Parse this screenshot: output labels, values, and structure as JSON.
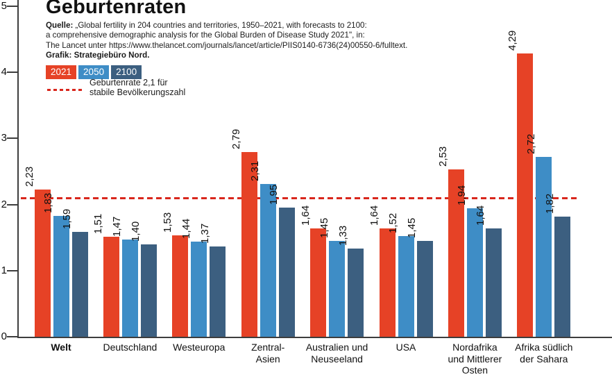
{
  "title": "Geburtenraten",
  "source": {
    "prefix": "Quelle:",
    "line1_rest": " „Global fertility in 204 countries and territories, 1950–2021, with forecasts to 2100:",
    "line2": "a comprehensive demographic analysis for the Global Burden of Disease Study 2021\", in:",
    "line3": "The Lancet unter https://www.thelancet.com/journals/lancet/article/PIIS0140-6736(24)00550-6/fulltext.",
    "credit": "Grafik: Strategiebüro Nord."
  },
  "legend": {
    "reference_label_line1": "Geburtenrate 2,1 für",
    "reference_label_line2": "stabile Bevölkerungszahl"
  },
  "chart_data": {
    "type": "bar",
    "title": "Geburtenraten",
    "ylim": [
      0,
      5
    ],
    "y_ticks": [
      0,
      1,
      2,
      3,
      4,
      5
    ],
    "grid": false,
    "legend_position": "top-left",
    "axis_color": "#3d3d3d",
    "reference_line": {
      "value": 2.1,
      "label": "Geburtenrate 2,1 für stabile Bevölkerungszahl",
      "style": "dashed",
      "color": "#d9261c"
    },
    "categories": [
      {
        "label": "Welt",
        "lines": [
          "Welt"
        ],
        "bold": true
      },
      {
        "label": "Deutschland",
        "lines": [
          "Deutschland"
        ],
        "bold": false
      },
      {
        "label": "Westeuropa",
        "lines": [
          "Westeuropa"
        ],
        "bold": false
      },
      {
        "label": "Zentral-Asien",
        "lines": [
          "Zentral-",
          "Asien"
        ],
        "bold": false
      },
      {
        "label": "Australien und Neuseeland",
        "lines": [
          "Australien und",
          "Neuseeland"
        ],
        "bold": false
      },
      {
        "label": "USA",
        "lines": [
          "USA"
        ],
        "bold": false
      },
      {
        "label": "Nordafrika und Mittlerer Osten",
        "lines": [
          "Nordafrika",
          "und Mittlerer",
          "Osten"
        ],
        "bold": false
      },
      {
        "label": "Afrika südlich der Sahara",
        "lines": [
          "Afrika südlich",
          "der Sahara"
        ],
        "bold": false
      }
    ],
    "series": [
      {
        "name": "2021",
        "color": "#e64226",
        "values": [
          2.23,
          1.51,
          1.53,
          2.79,
          1.64,
          1.64,
          2.53,
          4.29
        ],
        "labels": [
          "2,23",
          "1,51",
          "1,53",
          "2,79",
          "1,64",
          "1,64",
          "2,53",
          "4,29"
        ]
      },
      {
        "name": "2050",
        "color": "#3e8dc6",
        "values": [
          1.83,
          1.47,
          1.44,
          2.31,
          1.45,
          1.52,
          1.94,
          2.72
        ],
        "labels": [
          "1,83",
          "1,47",
          "1,44",
          "2,31",
          "1,45",
          "1,52",
          "1,94",
          "2,72"
        ]
      },
      {
        "name": "2100",
        "color": "#3c5f80",
        "values": [
          1.59,
          1.4,
          1.37,
          1.95,
          1.33,
          1.45,
          1.64,
          1.82
        ],
        "labels": [
          "1,59",
          "1,40",
          "1,37",
          "1,95",
          "1,33",
          "1,45",
          "1,64",
          "1,82"
        ]
      }
    ]
  }
}
